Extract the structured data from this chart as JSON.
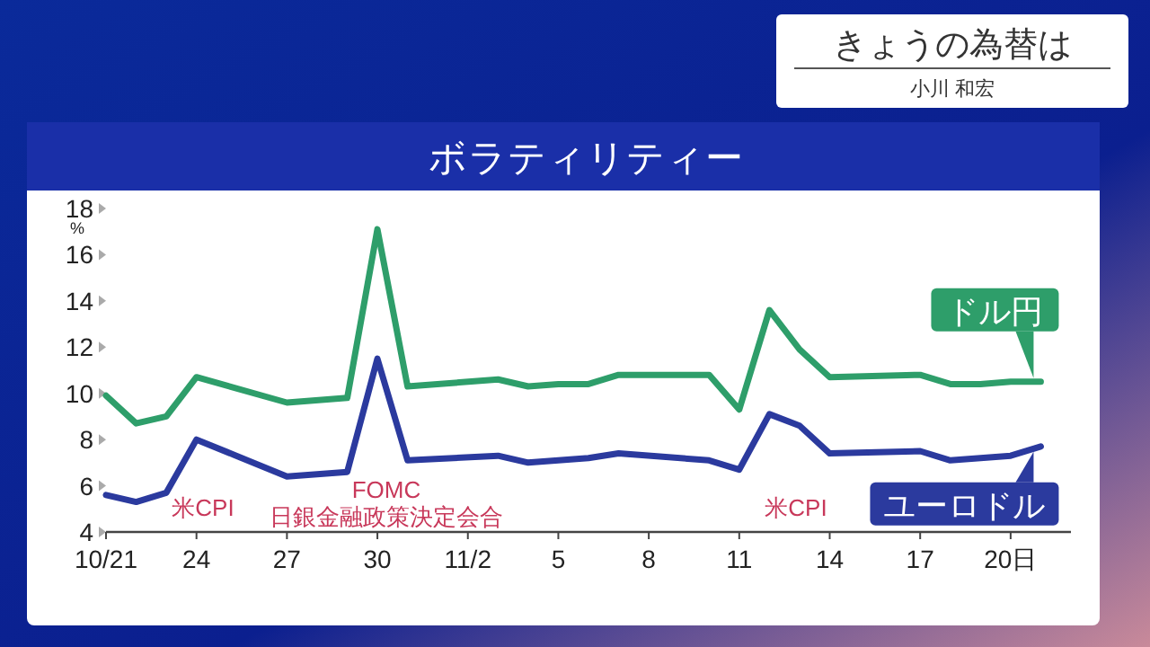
{
  "chart_data": {
    "type": "line",
    "title": "ボラティリティー",
    "ylabel": "%",
    "x": [
      "--10-21",
      "--10-22",
      "--10-23",
      "--10-24",
      "--10-27",
      "--10-29",
      "--10-30",
      "--10-31",
      "--11-03",
      "--11-04",
      "--11-05",
      "--11-06",
      "--11-07",
      "--11-10",
      "--11-11",
      "--11-12",
      "--11-13",
      "--11-14",
      "--11-17",
      "--11-18",
      "--11-19",
      "--11-20",
      "--11-21"
    ],
    "series": [
      {
        "name": "ドル円",
        "color": "#2e9e6a",
        "values": [
          9.9,
          8.7,
          9.0,
          10.7,
          9.6,
          9.8,
          17.1,
          10.3,
          10.6,
          10.3,
          10.4,
          10.4,
          10.8,
          10.8,
          9.3,
          13.6,
          11.9,
          10.7,
          10.8,
          10.4,
          10.4,
          10.5,
          10.5
        ]
      },
      {
        "name": "ユーロドル",
        "color": "#2b3a9e",
        "values": [
          5.6,
          5.3,
          5.7,
          8.0,
          6.4,
          6.6,
          11.5,
          7.1,
          7.3,
          7.0,
          7.1,
          7.2,
          7.4,
          7.1,
          6.7,
          9.1,
          8.6,
          7.4,
          7.5,
          7.1,
          7.2,
          7.3,
          7.7
        ]
      }
    ],
    "xlim": [
      "--10-21",
      "--11-22"
    ],
    "xticks": [
      {
        "value": "--10-21",
        "label": "10/21"
      },
      {
        "value": "--10-24",
        "label": "24"
      },
      {
        "value": "--10-27",
        "label": "27"
      },
      {
        "value": "--10-30",
        "label": "30"
      },
      {
        "value": "--11-02",
        "label": "11/2"
      },
      {
        "value": "--11-05",
        "label": "5"
      },
      {
        "value": "--11-08",
        "label": "8"
      },
      {
        "value": "--11-11",
        "label": "11"
      },
      {
        "value": "--11-14",
        "label": "14"
      },
      {
        "value": "--11-17",
        "label": "17"
      },
      {
        "value": "--11-20",
        "label": "20日"
      }
    ],
    "ylim": [
      4,
      18
    ],
    "yticks": [
      4,
      6,
      8,
      10,
      12,
      14,
      16,
      18
    ],
    "grid": false,
    "legend": "right",
    "marker": "none",
    "line_style": "solid",
    "annotations": [
      "きょうの為替は",
      "小川 和宏",
      "米CPI",
      "FOMC\n日銀金融政策決定会合",
      "米CPI"
    ]
  }
}
